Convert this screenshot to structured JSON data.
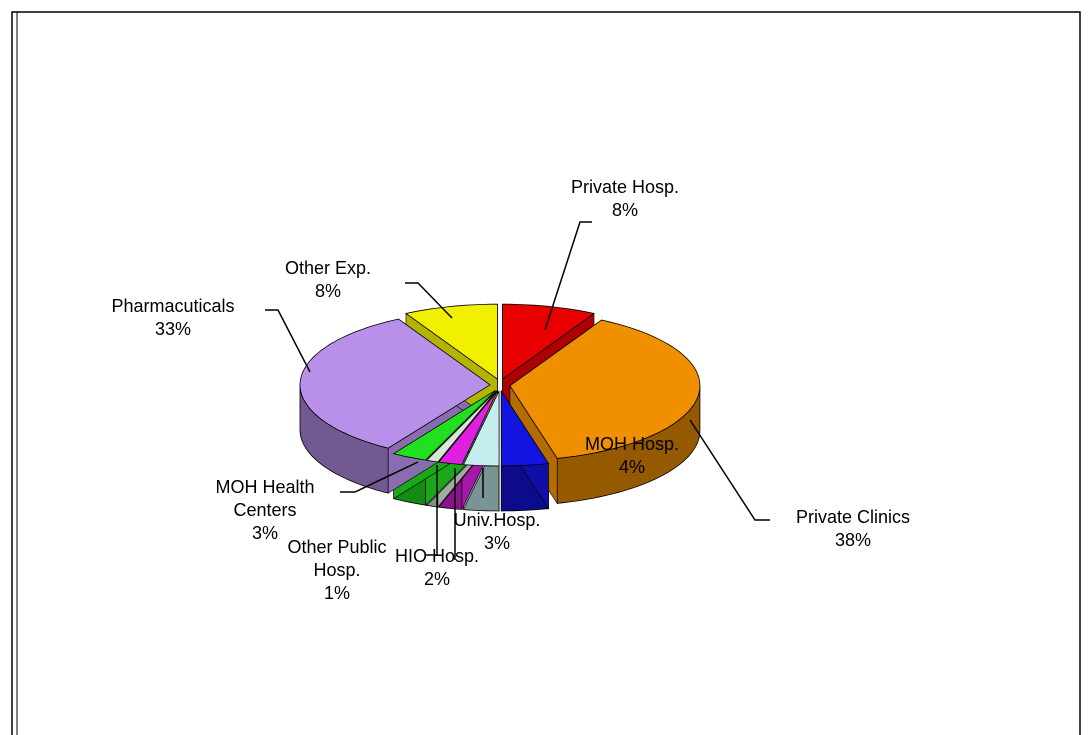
{
  "chart_data": {
    "type": "pie",
    "categories": [
      "Private Hosp.",
      "Private Clinics",
      "MOH Hosp.",
      "Univ.Hosp.",
      "HIO Hosp.",
      "Other Public Hosp.",
      "MOH Health Centers",
      "Pharmacuticals",
      "Other Exp."
    ],
    "values": [
      8,
      38,
      4,
      3,
      2,
      1,
      3,
      33,
      8
    ],
    "value_labels": [
      "8%",
      "38%",
      "4%",
      "3%",
      "2%",
      "1%",
      "3%",
      "33%",
      "8%"
    ],
    "colors": [
      "#e80000",
      "#f09000",
      "#1414e0",
      "#c4eeee",
      "#e020e0",
      "#d4e8d4",
      "#20e020",
      "#b890ea",
      "#f0f000"
    ]
  }
}
